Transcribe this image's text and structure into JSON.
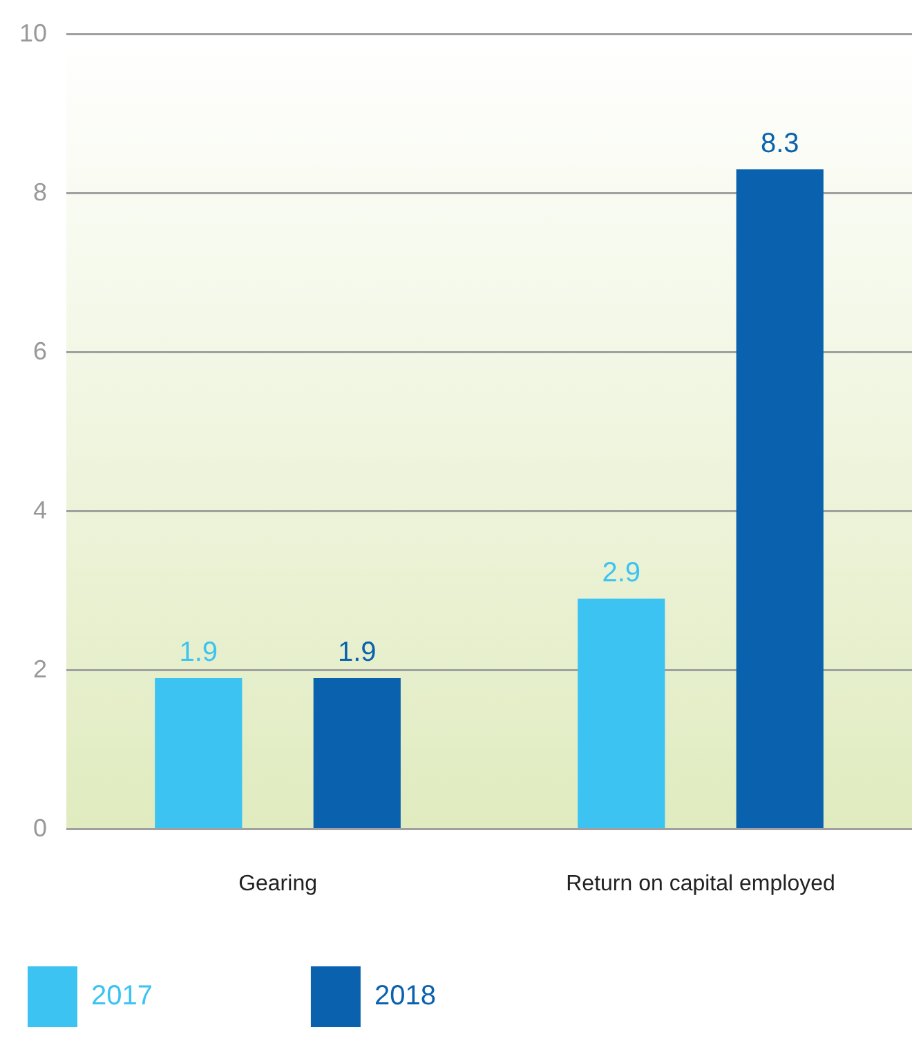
{
  "chart_data": {
    "type": "bar",
    "categories": [
      "Gearing",
      "Return on capital employed"
    ],
    "series": [
      {
        "name": "2017",
        "color": "#3cc3f2",
        "values": [
          1.9,
          2.9
        ]
      },
      {
        "name": "2018",
        "color": "#0a62ae",
        "values": [
          1.9,
          8.3
        ]
      }
    ],
    "ylim": [
      0,
      10
    ],
    "yticks": [
      0,
      2,
      4,
      6,
      8,
      10
    ],
    "grid": "y",
    "legend": "bottom left",
    "data_labels": true
  }
}
